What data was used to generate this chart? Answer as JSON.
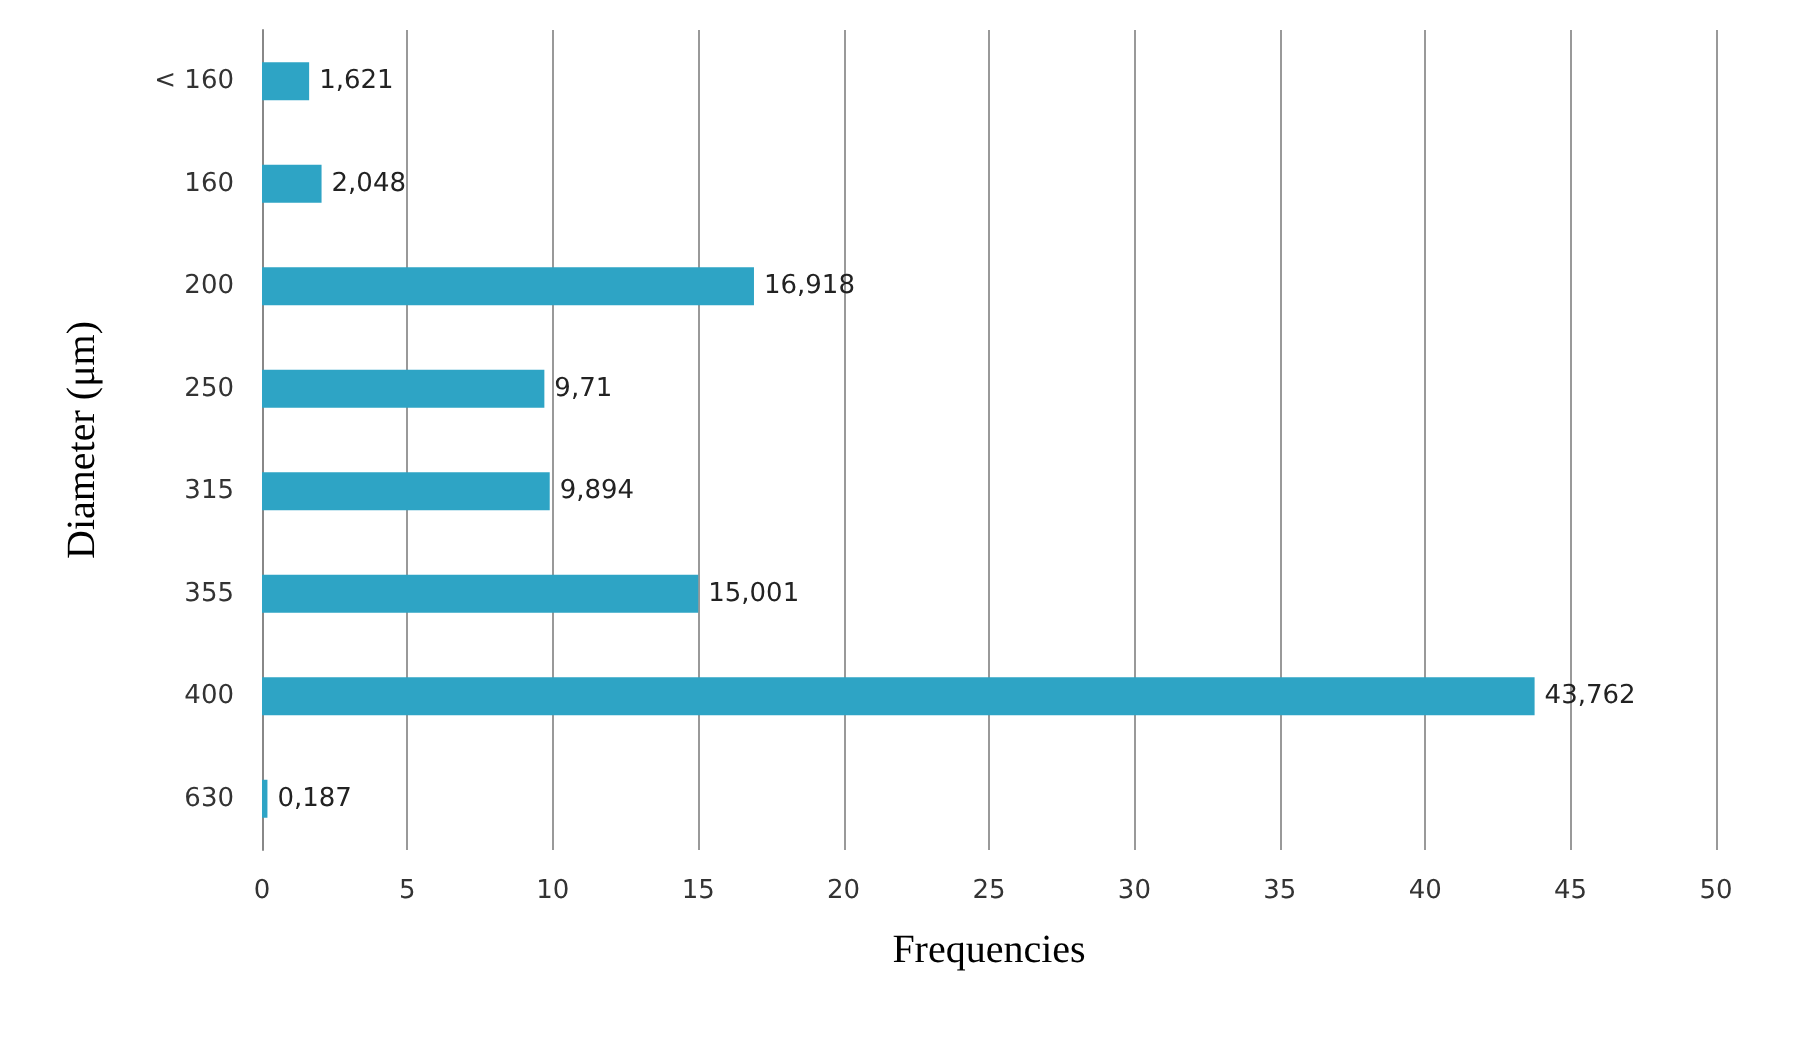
{
  "chart_data": {
    "type": "bar",
    "orientation": "horizontal",
    "xlabel": "Frequencies",
    "ylabel": "Diameter (μm)",
    "categories": [
      "< 160",
      "160",
      "200",
      "250",
      "315",
      "355",
      "400",
      "630"
    ],
    "values": [
      1.621,
      2.048,
      16.918,
      9.71,
      9.894,
      15.001,
      43.762,
      0.187
    ],
    "value_labels": [
      "1,621",
      "2,048",
      "16,918",
      "9,71",
      "9,894",
      "15,001",
      "43,762",
      "0,187"
    ],
    "color": "#2ea4c5",
    "xlim": [
      0,
      50
    ],
    "xticks": [
      0,
      5,
      10,
      15,
      20,
      25,
      30,
      35,
      40,
      45,
      50
    ],
    "grid": "x"
  }
}
